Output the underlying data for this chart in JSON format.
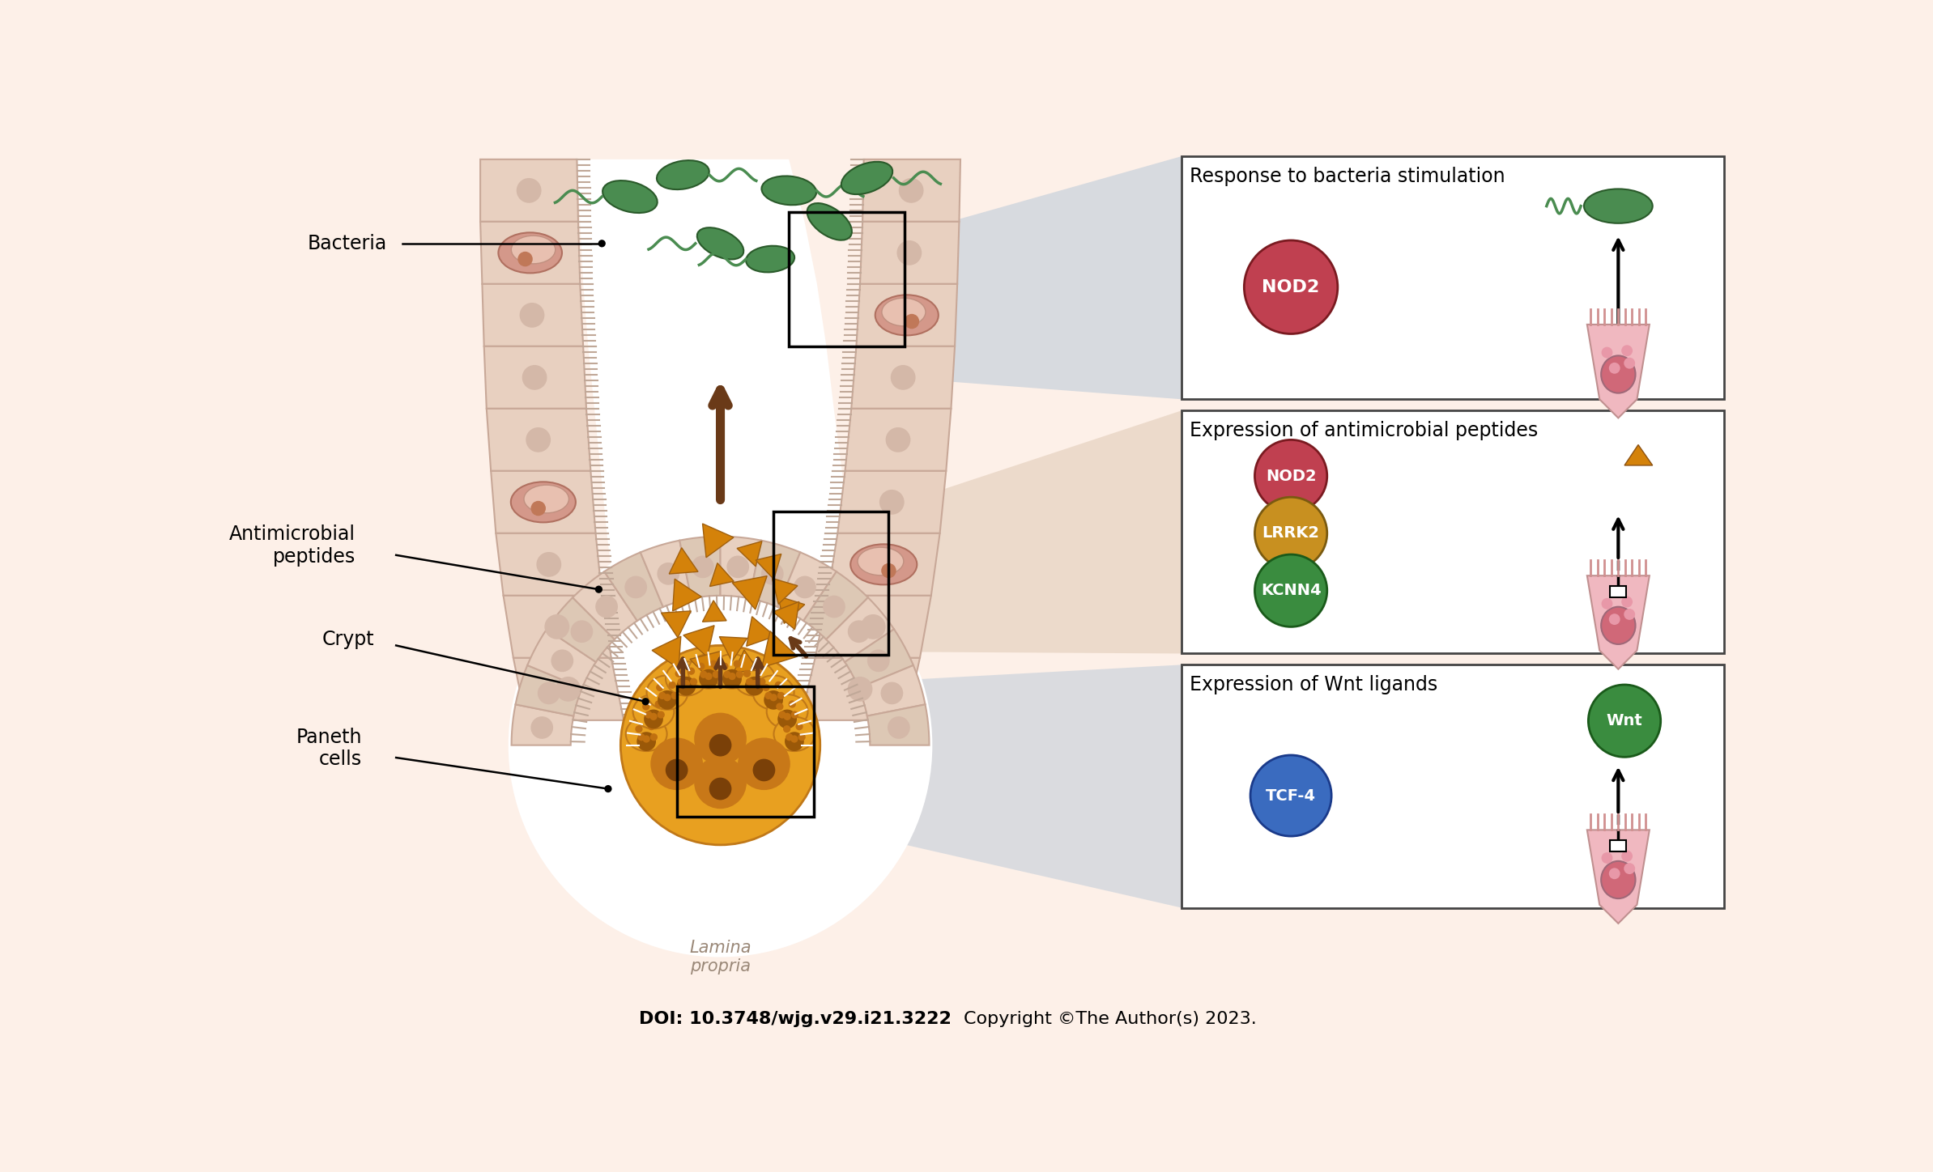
{
  "background_color": "#fdf0e8",
  "fig_width": 23.87,
  "fig_height": 14.48,
  "doi_text": "DOI: 10.3748/wjg.v29.i21.3222",
  "copyright_text": "Copyright ©The Author(s) 2023.",
  "labels": {
    "bacteria": "Bacteria",
    "antimicrobial": "Antimicrobial\npeptides",
    "crypt": "Crypt",
    "paneth": "Paneth\ncells",
    "lamina": "Lamina\npropria"
  },
  "panel1_title": "Response to bacteria stimulation",
  "panel2_title": "Expression of antimicrobial peptides",
  "panel3_title": "Expression of Wnt ligands",
  "NOD2_color": "#c04050",
  "LRRK2_color": "#c89020",
  "KCNN4_color": "#3a8c3f",
  "TCF4_color": "#3a6bbf",
  "Wnt_color": "#3a8c3f",
  "cell_body_color": "#f0b8c0",
  "cell_nucleus_color": "#d06878",
  "bacteria_color": "#4a8c50",
  "peptide_color": "#d4820a",
  "arrow_color": "#6a3a18",
  "wall_fill": "#e8d0c0",
  "wall_stripe": "#c8a898",
  "paneth_fill": "#e8a020",
  "paneth_outer": "#c07818",
  "lumen_color": "#ffffff",
  "crypt_open_color": "#f5f0ee"
}
